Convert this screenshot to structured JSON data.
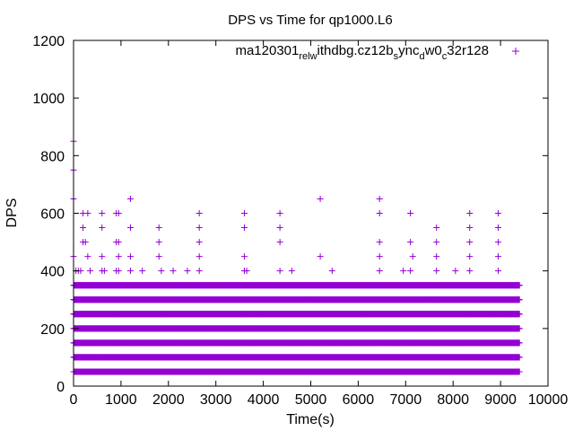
{
  "chart_data": {
    "type": "scatter",
    "title": "DPS vs Time for qp1000.L6",
    "xlabel": "Time(s)",
    "ylabel": "DPS",
    "xlim": [
      0,
      10000
    ],
    "ylim": [
      0,
      1200
    ],
    "xticks": [
      0,
      1000,
      2000,
      3000,
      4000,
      5000,
      6000,
      7000,
      8000,
      9000,
      10000
    ],
    "yticks": [
      0,
      200,
      400,
      600,
      800,
      1000,
      1200
    ],
    "xtick_labels": [
      "0",
      "1000",
      "2000",
      "3000",
      "4000",
      "5000",
      "6000",
      "7000",
      "8000",
      "9000",
      "10000"
    ],
    "ytick_labels": [
      "0",
      "200",
      "400",
      "600",
      "800",
      "1000",
      "1200"
    ],
    "marker": "+",
    "color": "#9400d3",
    "legend": {
      "position": "top-right",
      "label_parts": [
        "ma120301",
        "rel",
        "w",
        "ithdbg.cz12b",
        "s",
        "ync",
        "d",
        "w0",
        "c",
        "32r128"
      ]
    },
    "series": [
      {
        "name": "ma120301_rel_withdbg.cz12b_sync_dw0_c32r128",
        "dense_levels": [
          {
            "y": 50,
            "x_start": 0,
            "x_end": 9400
          },
          {
            "y": 100,
            "x_start": 0,
            "x_end": 9400
          },
          {
            "y": 150,
            "x_start": 0,
            "x_end": 9400
          },
          {
            "y": 200,
            "x_start": 0,
            "x_end": 9400
          },
          {
            "y": 250,
            "x_start": 0,
            "x_end": 9400
          },
          {
            "y": 300,
            "x_start": 0,
            "x_end": 9400
          },
          {
            "y": 350,
            "x_start": 0,
            "x_end": 9400
          }
        ],
        "sparse_points": [
          [
            0,
            850
          ],
          [
            0,
            750
          ],
          [
            0,
            650
          ],
          [
            0,
            450
          ],
          [
            50,
            400
          ],
          [
            100,
            400
          ],
          [
            150,
            400
          ],
          [
            200,
            600
          ],
          [
            200,
            550
          ],
          [
            200,
            500
          ],
          [
            250,
            500
          ],
          [
            300,
            600
          ],
          [
            300,
            450
          ],
          [
            350,
            400
          ],
          [
            600,
            600
          ],
          [
            600,
            550
          ],
          [
            600,
            450
          ],
          [
            600,
            400
          ],
          [
            650,
            400
          ],
          [
            900,
            600
          ],
          [
            900,
            500
          ],
          [
            900,
            400
          ],
          [
            950,
            600
          ],
          [
            950,
            500
          ],
          [
            950,
            450
          ],
          [
            950,
            400
          ],
          [
            1200,
            650
          ],
          [
            1200,
            550
          ],
          [
            1200,
            450
          ],
          [
            1200,
            400
          ],
          [
            1450,
            400
          ],
          [
            1800,
            550
          ],
          [
            1800,
            500
          ],
          [
            1800,
            450
          ],
          [
            1850,
            400
          ],
          [
            2100,
            400
          ],
          [
            2400,
            400
          ],
          [
            2650,
            600
          ],
          [
            2650,
            550
          ],
          [
            2650,
            500
          ],
          [
            2650,
            450
          ],
          [
            2650,
            400
          ],
          [
            3600,
            600
          ],
          [
            3600,
            550
          ],
          [
            3600,
            450
          ],
          [
            3600,
            400
          ],
          [
            3650,
            400
          ],
          [
            4350,
            600
          ],
          [
            4350,
            550
          ],
          [
            4350,
            500
          ],
          [
            4350,
            400
          ],
          [
            4600,
            400
          ],
          [
            5200,
            650
          ],
          [
            5200,
            450
          ],
          [
            5450,
            400
          ],
          [
            6450,
            650
          ],
          [
            6450,
            600
          ],
          [
            6450,
            500
          ],
          [
            6450,
            450
          ],
          [
            6450,
            400
          ],
          [
            6950,
            400
          ],
          [
            7100,
            600
          ],
          [
            7100,
            500
          ],
          [
            7100,
            400
          ],
          [
            7150,
            450
          ],
          [
            7650,
            550
          ],
          [
            7650,
            500
          ],
          [
            7650,
            450
          ],
          [
            7650,
            400
          ],
          [
            7700,
            300
          ],
          [
            8050,
            400
          ],
          [
            8350,
            600
          ],
          [
            8350,
            550
          ],
          [
            8350,
            500
          ],
          [
            8350,
            450
          ],
          [
            8350,
            400
          ],
          [
            8950,
            600
          ],
          [
            8950,
            550
          ],
          [
            8950,
            500
          ],
          [
            8950,
            450
          ],
          [
            8950,
            400
          ]
        ]
      }
    ]
  }
}
